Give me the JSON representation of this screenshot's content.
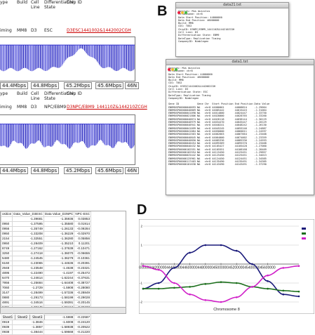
{
  "panels": {
    "b": "B",
    "d": "D"
  },
  "panel_a": {
    "header_cols": [
      "ype",
      "Build",
      "Cell Line",
      "Differentiation State",
      "Chip ID"
    ],
    "track1": {
      "type": "iming",
      "build": "MM8",
      "cell": "D3",
      "state": "ESC",
      "chip_id": "D3ESC1441002&1442002CGH"
    },
    "track2": {
      "type": "iming",
      "build": "MM8",
      "cell": "D3",
      "state": "NPC/EBM9",
      "chip_id": "D3NPC/EBM9_144110Z&144210ZCGH"
    },
    "axis_labels": [
      "44.4Mbps",
      "44.8Mbps",
      "45.2Mbps",
      "45.6Mbps",
      "46N"
    ]
  },
  "panel_b": {
    "window1": {
      "title": "data21.txt",
      "lines": [
        "Species: Mus musculus",
        "Chromosome: chr8",
        "Data Start Position: 44000000",
        "Data End Position: 46000000",
        "Build: MM8",
        "CGS: T052",
        "ChipID: D3NPC/EBM9_144110Z&144210ZCGH",
        "Cell Line: D3",
        "Differentiation State: EBM9",
        "DataType: Replication Timing",
        "CompanyID: Nimblegen"
      ]
    },
    "window2": {
      "title": "data1.txt",
      "lines": [
        "Species: Mus musculus",
        "Chromosome: chr8",
        "Data Start Position: 44000000",
        "Data End Position: 46000000",
        "Build: MM8",
        "CGS: T052",
        "ChipID: D3ESC1441002&1442002CGH",
        "Cell Line: D3",
        "Differentiation State: ESC",
        "DataType: Replication Timing",
        "CompanyID: Nimblegen"
      ],
      "columns": [
        "Gene ID",
        "Gene",
        "Chr",
        "Start Position",
        "End Position",
        "Data Value"
      ],
      "rows": [
        [
          "ENRMUSP00000040693",
          "NA",
          "chr8",
          "44000001",
          "44008824",
          "-1.29664"
        ],
        [
          "ENRMUSP00000040869",
          "NA",
          "chr8",
          "44005442",
          "44015443",
          "-1.31064"
        ],
        [
          "ENRMUSP00000041098",
          "NA",
          "chr8",
          "44014000",
          "44024447",
          "-1.33750"
        ],
        [
          "ENRMUSP00000021806",
          "NA",
          "chr8",
          "44028000",
          "44028765",
          "-1.33260"
        ],
        [
          "ENRMUSP00000040874",
          "NA",
          "chr8",
          "44028118",
          "44038144",
          "-1.30129"
        ],
        [
          "ENRMUSP00000040979",
          "NA",
          "chr8",
          "44034470",
          "44045447",
          "-1.20129"
        ],
        [
          "ENRMUSP00000040941",
          "NA",
          "chr8",
          "44040241",
          "44048242",
          "-1.26130"
        ],
        [
          "ENRMUSP00000041099",
          "NA",
          "chr8",
          "44045245",
          "44055246",
          "-1.24887"
        ],
        [
          "ENRMUSP00000041084",
          "NA",
          "chr8",
          "44050000",
          "44060011",
          "-1.24597"
        ],
        [
          "ENRMUSP00000042563",
          "NA",
          "chr8",
          "44062663",
          "44067664",
          "-1.23468"
        ],
        [
          "ENRMUSP00000040845",
          "NA",
          "chr8",
          "44064000",
          "44074002",
          "-1.23359"
        ],
        [
          "ENRMUSP00000040850",
          "NA",
          "chr8",
          "44085336",
          "44085336",
          "-1.24593"
        ],
        [
          "ENRMUSP00000040454",
          "NA",
          "chr8",
          "44095369",
          "44095370",
          "-1.23468"
        ],
        [
          "ENRMUSP00000040432",
          "NA",
          "chr8",
          "44105427",
          "44105428",
          "-1.27060"
        ],
        [
          "ENRMUSP00000102551",
          "NA",
          "chr8",
          "44105551",
          "44108168",
          "-1.28409"
        ],
        [
          "ENRMUSP00000102554",
          "NA",
          "chr8",
          "44115450",
          "44125451",
          "-1.29857"
        ],
        [
          "ENRMUSP00000025442",
          "NA",
          "chr8",
          "44125450",
          "44125451",
          "-1.34013"
        ],
        [
          "ENRMUSP00000125961",
          "NA",
          "chr8",
          "44124450",
          "44124451",
          "-1.34585"
        ],
        [
          "ENRMUSP00000117403",
          "NA",
          "chr8",
          "44135490",
          "44135491",
          "-1.34385"
        ],
        [
          "ENRMUSP00000101638",
          "NA",
          "chr8",
          "44143490",
          "44143491",
          "-1.37290"
        ]
      ]
    }
  },
  "panel_c": {
    "columns": [
      "osition",
      "Data_Value_D3ESC",
      "Data Value_D3NPC",
      "NPC-ESC"
    ],
    "rows": [
      [
        "",
        "-1.39681",
        "-1.35936",
        "0.03853"
      ],
      [
        "0950",
        "-1.37595",
        "-1.35580",
        "0.01914"
      ],
      [
        "0956",
        "-1.35749",
        "-1.26133",
        "-0.09284"
      ],
      [
        "0950",
        "-1.33208",
        "-1.36229",
        "-0.02970"
      ],
      [
        "2154",
        "-1.32551",
        "-1.36280",
        "0.05856"
      ],
      [
        "0950",
        "-1.28409",
        "-1.35210",
        "0.11201"
      ],
      [
        "8749",
        "-1.27162",
        "-1.37639",
        "-0.10471"
      ],
      [
        "3250",
        "-1.27418",
        "-1.36070",
        "-0.06655"
      ],
      [
        "5480",
        "-1.24545",
        "-1.36279",
        "-0.10361"
      ],
      [
        "6160",
        "-1.23065",
        "-1.44636",
        "-0.20391"
      ],
      [
        "2948",
        "-1.23548",
        "-1.4638",
        "-0.23321"
      ],
      [
        "4895",
        "-1.22490",
        "-1.4197",
        "-0.25472"
      ],
      [
        "6470",
        "-1.24614",
        "-1.62244",
        "-0.37631"
      ],
      [
        "7956",
        "-1.25684",
        "-1.64408",
        "-0.38727"
      ],
      [
        "7060",
        "-1.2729",
        "-1.5908",
        "-0.28080"
      ],
      [
        "3147",
        "-1.28499",
        "-1.57336",
        "-0.28849"
      ],
      [
        "0880",
        "-1.29173",
        "-1.58199",
        "-0.29028"
      ],
      [
        "4891",
        "-1.34516",
        "-1.59391",
        "-0.20145"
      ],
      [
        "8491",
        "-1.35145",
        "-1.59444",
        "-0.25233"
      ],
      [
        "0932",
        "-1.34151",
        "-1.5961",
        "-0.25517"
      ],
      [
        "0969",
        "-1.37293",
        "-1.5988",
        "-0.22587"
      ],
      [
        "0919",
        "-1.3846",
        "-1.6008",
        "-0.24120"
      ],
      [
        "0939",
        "-1.3857",
        "-1.58938",
        "-0.20522"
      ],
      [
        "0938",
        "-1.38444",
        "-1.59668",
        "-0.21220"
      ]
    ],
    "sheet_tabs": [
      "Sheet1",
      "Sheet2",
      "Sheet3"
    ]
  },
  "chart_data": {
    "type": "line",
    "title": "",
    "xlabel": "Chromosome 8",
    "ylabel": "",
    "x_ticks": [
      "44000000",
      "44200000",
      "44400000",
      "44600000",
      "44800000",
      "45000000",
      "45200000",
      "45400000",
      "45600000"
    ],
    "xlim": [
      44000000,
      46000000
    ],
    "ylim": [
      -2,
      2
    ],
    "y_ticks": [
      -2,
      -1,
      0,
      1,
      2
    ],
    "grid": true,
    "legend_placement": "right",
    "series": [
      {
        "color": "#1a1a7a",
        "x": [
          44000000,
          44200000,
          44400000,
          44600000,
          44800000,
          45000000,
          45200000,
          45400000,
          45600000,
          45800000,
          46000000
        ],
        "values": [
          -1.3,
          -1.0,
          -0.2,
          0.6,
          1.0,
          1.0,
          0.7,
          0.0,
          -0.9,
          -1.6,
          -1.7
        ]
      },
      {
        "color": "#1b6e1b",
        "x": [
          44000000,
          44200000,
          44400000,
          44600000,
          44800000,
          45000000,
          45200000,
          45400000,
          45600000,
          45800000,
          46000000
        ],
        "values": [
          -1.3,
          -1.3,
          -1.25,
          -1.2,
          -1.05,
          -0.95,
          -1.0,
          -1.2,
          -1.3,
          -1.4,
          -1.45
        ]
      },
      {
        "color": "#d020c8",
        "x": [
          44000000,
          44200000,
          44400000,
          44600000,
          44800000,
          45000000,
          45200000,
          45400000,
          45600000,
          45800000,
          46000000
        ],
        "values": [
          -0.1,
          -0.3,
          -1.0,
          -1.6,
          -1.9,
          -2.0,
          -1.75,
          -1.2,
          -0.6,
          -0.2,
          -0.1
        ]
      }
    ]
  }
}
